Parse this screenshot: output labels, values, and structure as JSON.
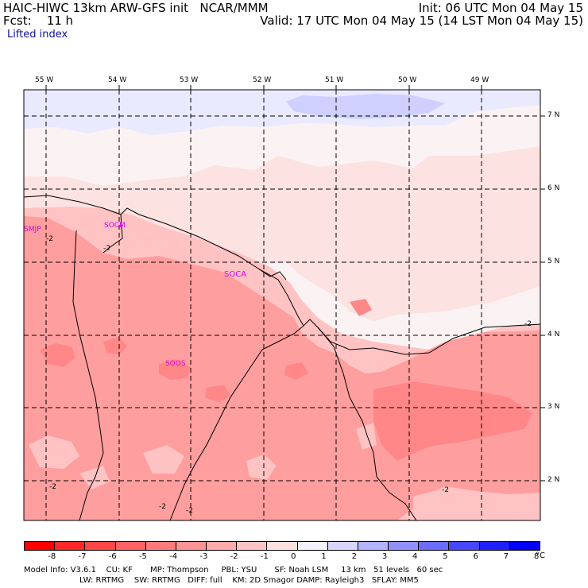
{
  "header": {
    "title_left": "HAIC-HIWC 13km ARW-GFS init   NCAR/MMM",
    "fcst_left": "Fcst:    11 h",
    "init_right": "Init: 06 UTC Mon 04 May 15",
    "valid_right": "Valid: 17 UTC Mon 04 May 15 (14 LST Mon 04 May 15)",
    "field_name": "Lifted index"
  },
  "map": {
    "lon_labels": [
      "55 W",
      "54 W",
      "53 W",
      "52 W",
      "51 W",
      "50 W",
      "49 W"
    ],
    "lat_labels": [
      "7 N",
      "6 N",
      "5 N",
      "4 N",
      "3 N",
      "2 N"
    ],
    "stations": [
      {
        "id": "SMJP"
      },
      {
        "id": "SOCM"
      },
      {
        "id": "SOCA"
      },
      {
        "id": "SOOS"
      }
    ],
    "contour_label": "-2",
    "colors": {
      "border": "#000000",
      "station": "#e000e0"
    }
  },
  "colorbar": {
    "labels": [
      "-8",
      "-7",
      "-6",
      "-5",
      "-4",
      "-3",
      "-2",
      "-1",
      "0",
      "1",
      "2",
      "3",
      "4",
      "5",
      "6",
      "7",
      "8"
    ],
    "unit": "°C",
    "colors": [
      "#ff0000",
      "#ff2828",
      "#ff4646",
      "#ff6262",
      "#ff7b7b",
      "#ff9292",
      "#ffabab",
      "#ffc3c3",
      "#ffe0e0",
      "#f3f3ff",
      "#d6d6ff",
      "#b3b3ff",
      "#9090ff",
      "#6b6bff",
      "#4646ff",
      "#2020ff",
      "#0000ff"
    ]
  },
  "footer": {
    "line1": "Model Info: V3.6.1    CU: KF       MP: Thompson     PBL: YSU       SF: Noah LSM     13 km   51 levels   60 sec",
    "line2": "LW: RRTMG    SW: RRTMG   DIFF: full    KM: 2D Smagor DAMP: Rayleigh3   SFLAY: MM5"
  }
}
